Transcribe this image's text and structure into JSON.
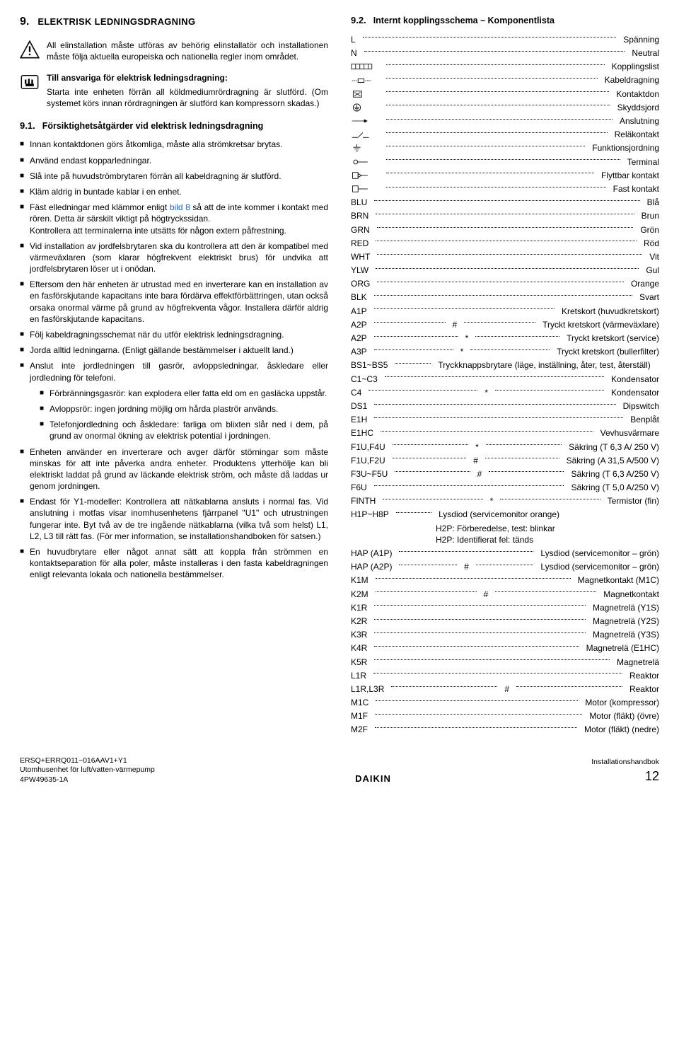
{
  "left": {
    "secNum": "9.",
    "secTitle": "ELEKTRISK LEDNINGSDRAGNING",
    "warnText": "All elinstallation måste utföras av behörig elinstallatör och installationen måste följa aktuella europeiska och nationella regler inom området.",
    "handTitle": "Till ansvariga för elektrisk ledningsdragning:",
    "handText": "Starta inte enheten förrän all köldmediumrördragning är slutförd. (Om systemet körs innan rördragningen är slutförd kan kompressorn skadas.)",
    "sub1Num": "9.1.",
    "sub1Title": "Försiktighetsåtgärder vid elektrisk ledningsdragning",
    "b1": "Innan kontaktdonen görs åtkomliga, måste alla strömkretsar brytas.",
    "b2": "Använd endast kopparledningar.",
    "b3": "Slå inte på huvudströmbrytaren förrän all kabeldragning är slutförd.",
    "b4": "Kläm aldrig in buntade kablar i en enhet.",
    "b5a": "Fäst elledningar med klämmor enligt ",
    "b5link": "bild 8",
    "b5b": " så att de inte kommer i kontakt med rören. Detta är särskilt viktigt på högtryckssidan.",
    "b5c": "Kontrollera att terminalerna inte utsätts för någon extern påfrestning.",
    "b6": "Vid installation av jordfelsbrytaren ska du kontrollera att den är kompatibel med värmeväxlaren (som klarar högfrekvent elektriskt brus) för undvika att jordfelsbrytaren löser ut i onödan.",
    "b7": "Eftersom den här enheten är utrustad med en inverterare kan en installation av en fasförskjutande kapacitans inte bara fördärva effektförbättringen, utan också orsaka onormal värme på grund av högfrekventa vågor. Installera därför aldrig en fasförskjutande kapacitans.",
    "b8": "Följ kabeldragningsschemat när du utför elektrisk ledningsdragning.",
    "b9": "Jorda alltid ledningarna. (Enligt gällande bestämmelser i aktuellt land.)",
    "b10": "Anslut inte jordledningen till gasrör, avloppsledningar, åskledare eller jordledning för telefoni.",
    "sub_a": "Förbränningsgasrör: kan explodera eller fatta eld om en gasläcka uppstår.",
    "sub_b": "Avloppsrör: ingen jordning möjlig om hårda plaströr används.",
    "sub_c": "Telefonjordledning och åskledare: farliga om blixten slår ned i dem, på grund av onormal ökning av elektrisk potential i jordningen.",
    "b11": "Enheten använder en inverterare och avger därför störningar som måste minskas för att inte påverka andra enheter. Produktens ytterhölje kan bli elektriskt laddat på grund av läckande elektrisk ström, och måste då laddas ur genom jordningen.",
    "b12a": "Endast för Y1-modeller: Kontrollera att nätkablarna ansluts i normal fas. Vid anslutning i motfas visar inomhusenhetens fjärrpanel \"",
    "b12code": "U1",
    "b12b": "\" och utrustningen fungerar inte. Byt två av de tre ingående nätkablarna (vilka två som helst) L1, L2, L3 till rätt fas. (För mer information, se installationshandboken för satsen.)",
    "b13": "En huvudbrytare eller något annat sätt att koppla från strömmen en kontaktseparation för alla poler, måste installeras i den fasta kabeldragningen enligt relevanta lokala och nationella bestämmelser."
  },
  "right": {
    "subNum": "9.2.",
    "subTitle": "Internt kopplingsschema – Komponentlista",
    "items": [
      {
        "sym": "",
        "lbl": "L",
        "hash": "",
        "val": "Spänning"
      },
      {
        "sym": "",
        "lbl": "N",
        "hash": "",
        "val": "Neutral"
      },
      {
        "sym": "terminal-strip",
        "lbl": "",
        "hash": "",
        "val": "Kopplingslist"
      },
      {
        "sym": "wiring",
        "lbl": "",
        "hash": "",
        "val": "Kabeldragning"
      },
      {
        "sym": "connector",
        "lbl": "",
        "hash": "",
        "val": "Kontaktdon"
      },
      {
        "sym": "pe-circle",
        "lbl": "",
        "hash": "",
        "val": "Skyddsjord"
      },
      {
        "sym": "arrow-conn",
        "lbl": "",
        "hash": "",
        "val": "Anslutning"
      },
      {
        "sym": "relay",
        "lbl": "",
        "hash": "",
        "val": "Reläkontakt"
      },
      {
        "sym": "func-ground",
        "lbl": "",
        "hash": "",
        "val": "Funktionsjordning"
      },
      {
        "sym": "terminal",
        "lbl": "",
        "hash": "",
        "val": "Terminal"
      },
      {
        "sym": "movable",
        "lbl": "",
        "hash": "",
        "val": "Flyttbar kontakt"
      },
      {
        "sym": "fixed",
        "lbl": "",
        "hash": "",
        "val": "Fast kontakt"
      },
      {
        "sym": "",
        "lbl": "BLU",
        "hash": "",
        "val": "Blå"
      },
      {
        "sym": "",
        "lbl": "BRN",
        "hash": "",
        "val": "Brun"
      },
      {
        "sym": "",
        "lbl": "GRN",
        "hash": "",
        "val": "Grön"
      },
      {
        "sym": "",
        "lbl": "RED",
        "hash": "",
        "val": "Röd"
      },
      {
        "sym": "",
        "lbl": "WHT",
        "hash": "",
        "val": "Vit"
      },
      {
        "sym": "",
        "lbl": "YLW",
        "hash": "",
        "val": "Gul"
      },
      {
        "sym": "",
        "lbl": "ORG",
        "hash": "",
        "val": "Orange"
      },
      {
        "sym": "",
        "lbl": "BLK",
        "hash": "",
        "val": "Svart"
      },
      {
        "sym": "",
        "lbl": "A1P",
        "hash": "",
        "val": "Kretskort (huvudkretskort)"
      },
      {
        "sym": "",
        "lbl": "A2P",
        "hash": "#",
        "val": "Tryckt kretskort (värmeväxlare)"
      },
      {
        "sym": "",
        "lbl": "A2P",
        "hash": "*",
        "val": "Tryckt kretskort (service)"
      },
      {
        "sym": "",
        "lbl": "A3P",
        "hash": "*",
        "val": "Tryckt kretskort (bullerfilter)"
      },
      {
        "sym": "",
        "lbl": "BS1~BS5",
        "hash": "",
        "val": "Tryckknappsbrytare (läge, inställning, åter, test, återställ)",
        "wrap": true
      },
      {
        "sym": "",
        "lbl": "C1~C3",
        "hash": "",
        "val": "Kondensator"
      },
      {
        "sym": "",
        "lbl": "C4",
        "hash": "*",
        "val": "Kondensator"
      },
      {
        "sym": "",
        "lbl": "DS1",
        "hash": "",
        "val": "Dipswitch"
      },
      {
        "sym": "",
        "lbl": "E1H",
        "hash": "",
        "val": "Benplåt"
      },
      {
        "sym": "",
        "lbl": "E1HC",
        "hash": "",
        "val": "Vevhusvärmare"
      },
      {
        "sym": "",
        "lbl": "F1U,F4U",
        "hash": "*",
        "val": "Säkring (T 6,3 A/ 250 V)"
      },
      {
        "sym": "",
        "lbl": "F1U,F2U",
        "hash": "#",
        "val": "Säkring (A 31,5 A/500 V)"
      },
      {
        "sym": "",
        "lbl": "F3U~F5U",
        "hash": "#",
        "val": "Säkring (T 6,3 A/250 V)"
      },
      {
        "sym": "",
        "lbl": "F6U",
        "hash": "",
        "val": "Säkring (T 5,0 A/250 V)"
      },
      {
        "sym": "",
        "lbl": "FINTH",
        "hash": "*",
        "val": "Termistor (fin)"
      },
      {
        "sym": "",
        "lbl": "H1P~H8P",
        "hash": "",
        "val": "Lysdiod (servicemonitor orange)\nH2P: Förberedelse, test: blinkar\nH2P: Identifierat fel: tänds",
        "wrap": true
      },
      {
        "sym": "",
        "lbl": "HAP (A1P)",
        "hash": "",
        "val": "Lysdiod (servicemonitor – grön)"
      },
      {
        "sym": "",
        "lbl": "HAP (A2P)",
        "hash": "#",
        "val": "Lysdiod (servicemonitor – grön)"
      },
      {
        "sym": "",
        "lbl": "K1M",
        "hash": "",
        "val": "Magnetkontakt (M1C)"
      },
      {
        "sym": "",
        "lbl": "K2M",
        "hash": "#",
        "val": "Magnetkontakt"
      },
      {
        "sym": "",
        "lbl": "K1R",
        "hash": "",
        "val": "Magnetrelä (Y1S)"
      },
      {
        "sym": "",
        "lbl": "K2R",
        "hash": "",
        "val": "Magnetrelä (Y2S)"
      },
      {
        "sym": "",
        "lbl": "K3R",
        "hash": "",
        "val": "Magnetrelä (Y3S)"
      },
      {
        "sym": "",
        "lbl": "K4R",
        "hash": "",
        "val": "Magnetrelä (E1HC)"
      },
      {
        "sym": "",
        "lbl": "K5R",
        "hash": "",
        "val": "Magnetrelä"
      },
      {
        "sym": "",
        "lbl": "L1R",
        "hash": "",
        "val": "Reaktor"
      },
      {
        "sym": "",
        "lbl": "L1R,L3R",
        "hash": "#",
        "val": "Reaktor"
      },
      {
        "sym": "",
        "lbl": "M1C",
        "hash": "",
        "val": "Motor (kompressor)"
      },
      {
        "sym": "",
        "lbl": "M1F",
        "hash": "",
        "val": "Motor (fläkt) (övre)"
      },
      {
        "sym": "",
        "lbl": "M2F",
        "hash": "",
        "val": "Motor (fläkt) (nedre)"
      }
    ]
  },
  "footer": {
    "l1": "ERSQ+ERRQ011~016AAV1+Y1",
    "l2": "Utomhusenhet för luft/vatten-värmepump",
    "l3": "4PW49635-1A",
    "brand": "DAIKIN",
    "r1": "Installationshandbok",
    "page": "12"
  }
}
